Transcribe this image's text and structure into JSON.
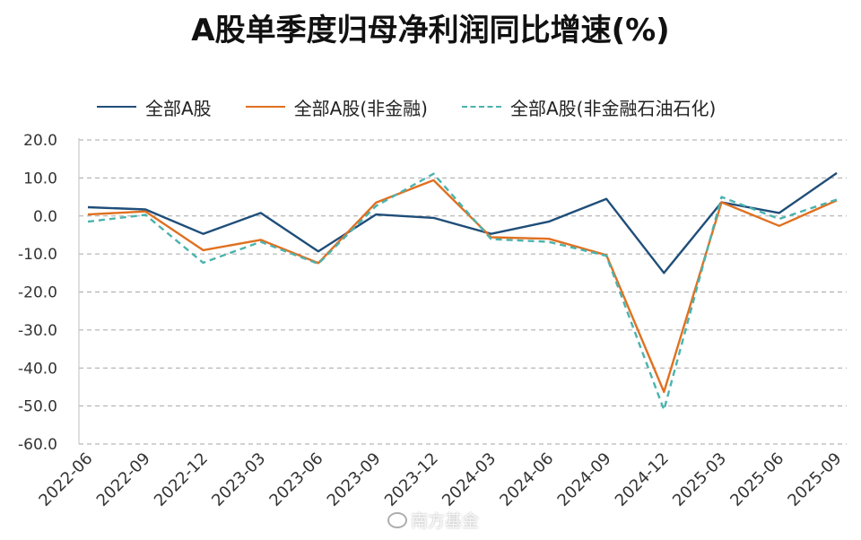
{
  "chart_data": {
    "type": "line",
    "title": "A股单季度归母净利润同比增速(%)",
    "categories": [
      "2022-06",
      "2022-09",
      "2022-12",
      "2023-03",
      "2023-06",
      "2023-09",
      "2023-12",
      "2024-03",
      "2024-06",
      "2024-09",
      "2024-12",
      "2025-03",
      "2025-06",
      "2025-09"
    ],
    "series": [
      {
        "name": "全部A股",
        "color": "#1f4e79",
        "style": "solid",
        "values": [
          2.3,
          1.7,
          -4.7,
          0.8,
          -9.3,
          0.4,
          -0.5,
          -4.7,
          -1.5,
          4.5,
          -15.0,
          3.6,
          0.8,
          11.3
        ]
      },
      {
        "name": "全部A股(非金融)",
        "color": "#e07020",
        "style": "solid",
        "values": [
          0.4,
          1.2,
          -9.0,
          -6.3,
          -12.4,
          3.5,
          9.4,
          -5.6,
          -6.0,
          -10.3,
          -46.3,
          3.6,
          -2.6,
          4.1
        ]
      },
      {
        "name": "全部A股(非金融石油石化)",
        "color": "#4bb3ad",
        "style": "dashed",
        "values": [
          -1.5,
          0.3,
          -12.3,
          -6.8,
          -12.6,
          2.6,
          11.1,
          -6.1,
          -6.8,
          -10.5,
          -51.0,
          5.0,
          -0.8,
          4.3
        ]
      }
    ],
    "yticks": [
      "20.0",
      "10.0",
      "0.0",
      "-10.0",
      "-20.0",
      "-30.0",
      "-40.0",
      "-50.0",
      "-60.0"
    ],
    "ylim": [
      -60,
      20
    ],
    "grid": true,
    "legend_position": "top",
    "xlabel": "",
    "ylabel": ""
  },
  "watermark": {
    "text": "南方基金",
    "icon": "weibo-icon"
  }
}
